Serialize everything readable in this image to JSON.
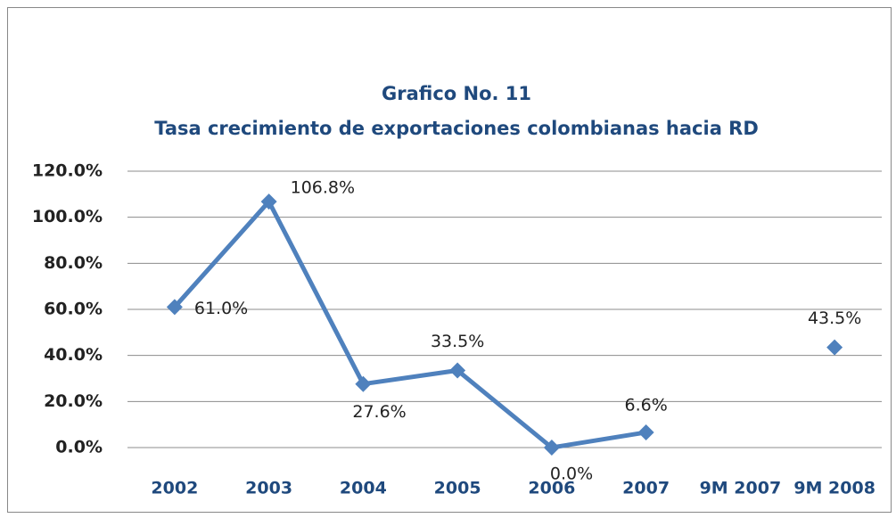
{
  "chart_data": {
    "type": "line",
    "title": "Grafico No. 11",
    "subtitle": "Tasa crecimiento de exportaciones colombianas hacia RD",
    "categories": [
      "2002",
      "2003",
      "2004",
      "2005",
      "2006",
      "2007",
      "9M 2007",
      "9M 2008"
    ],
    "series": [
      {
        "name": "Tasa crecimiento",
        "color": "#4f81bd",
        "values": [
          61.0,
          106.8,
          27.6,
          33.5,
          0.0,
          6.6,
          null,
          43.5
        ],
        "value_labels": [
          "61.0%",
          "106.8%",
          "27.6%",
          "33.5%",
          "0.0%",
          "6.6%",
          null,
          "43.5%"
        ]
      }
    ],
    "ylim": [
      0,
      120
    ],
    "yticks": [
      {
        "value": 0,
        "label": "0.0%"
      },
      {
        "value": 20,
        "label": "20.0%"
      },
      {
        "value": 40,
        "label": "40.0%"
      },
      {
        "value": 60,
        "label": "60.0%"
      },
      {
        "value": 80,
        "label": "80.0%"
      },
      {
        "value": 100,
        "label": "100.0%"
      },
      {
        "value": 120,
        "label": "120.0%"
      }
    ],
    "grid": true
  }
}
